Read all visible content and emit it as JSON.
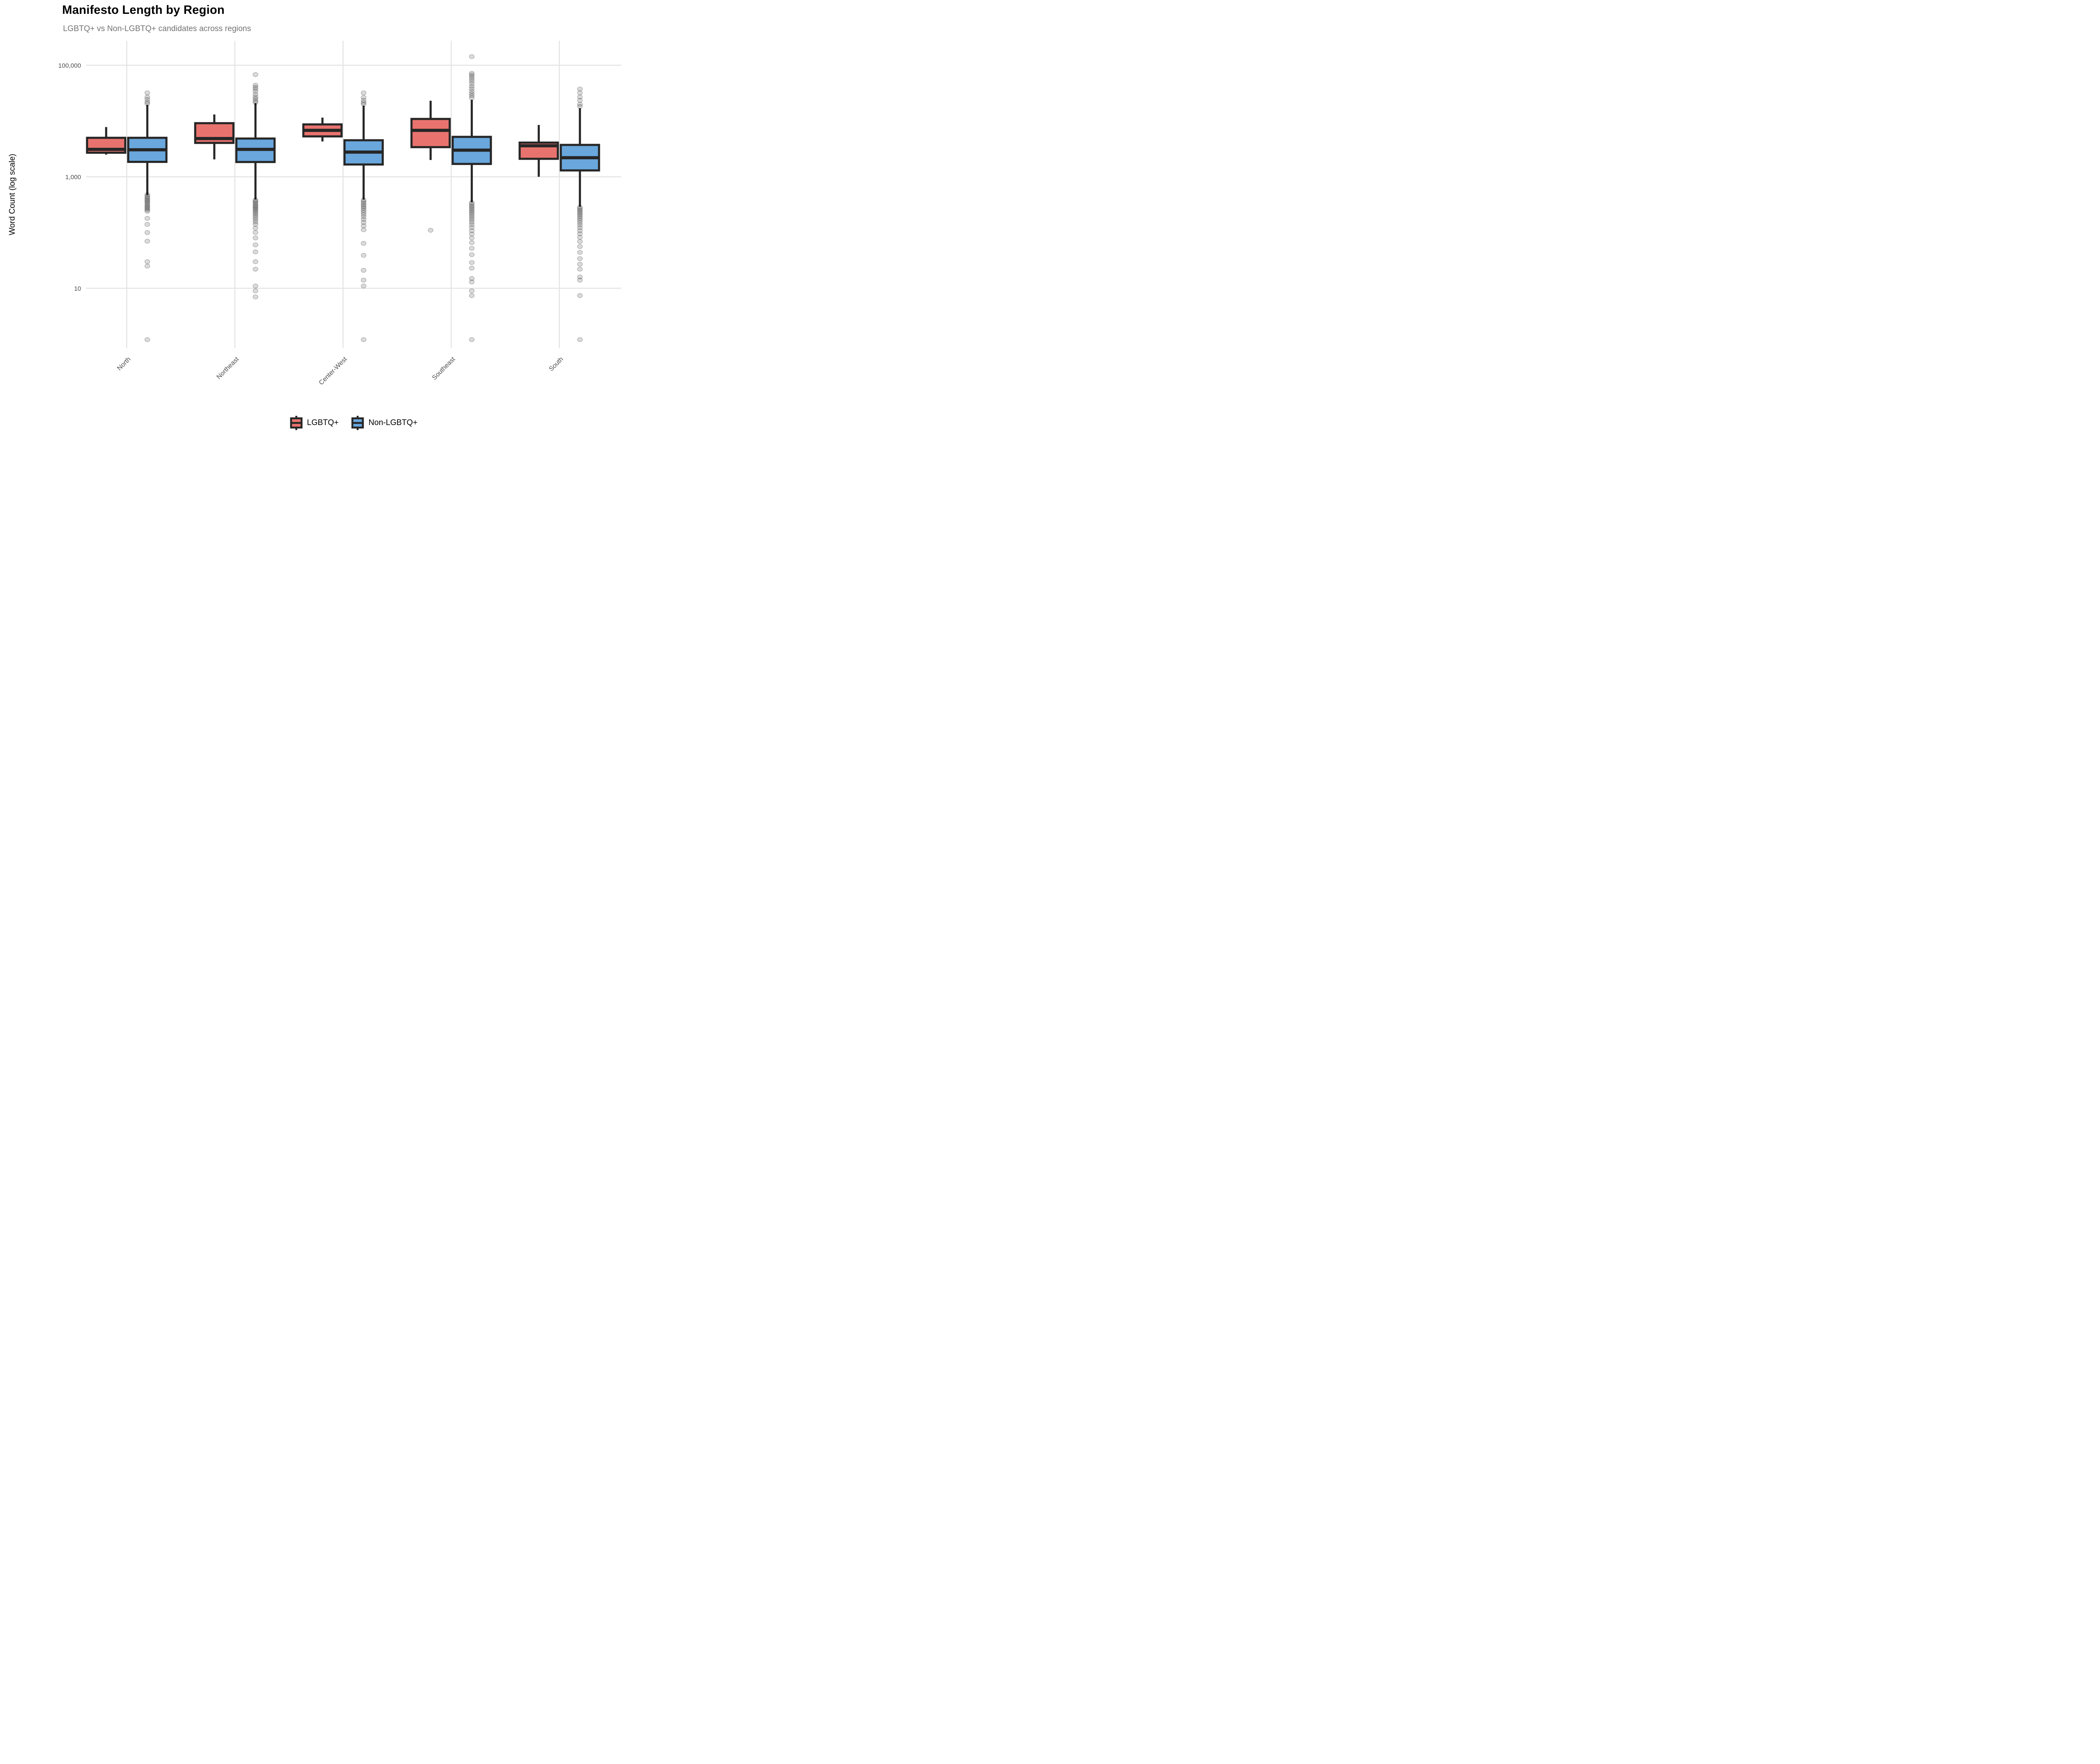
{
  "chart_data": {
    "type": "boxplot",
    "title": "Manifesto Length by Region",
    "subtitle": "LGBTQ+ vs Non-LGBTQ+ candidates across regions",
    "ylabel": "Word Count (log scale)",
    "y_scale": "log10",
    "ylim": [
      1,
      300000
    ],
    "grid": "major-only",
    "legend_position": "bottom",
    "y_ticks": [
      {
        "value": 100000,
        "label": "100,000"
      },
      {
        "value": 1000,
        "label": "1,000"
      },
      {
        "value": 10,
        "label": "10"
      }
    ],
    "categories": [
      "North",
      "Northeast",
      "Center-West",
      "Southeast",
      "South"
    ],
    "colors": {
      "box_outline": "#262626",
      "gridline": "#E4E4E4",
      "tick_text": "#4D4D4D",
      "subtitle_text": "#737373",
      "outlier": "#000000"
    },
    "series": [
      {
        "name": "LGBTQ+",
        "color": "#E8736E",
        "boxes": [
          {
            "region": "North",
            "min": 2500,
            "q1": 2700,
            "median": 3100,
            "q3": 5000,
            "max": 7800,
            "outliers": []
          },
          {
            "region": "Northeast",
            "min": 2050,
            "q1": 4050,
            "median": 4850,
            "q3": 9150,
            "max": 13100,
            "outliers": []
          },
          {
            "region": "Center-West",
            "min": 4300,
            "q1": 5300,
            "median": 6800,
            "q3": 8700,
            "max": 11500,
            "outliers": []
          },
          {
            "region": "Southeast",
            "min": 2000,
            "q1": 3400,
            "median": 6800,
            "q3": 10900,
            "max": 23100,
            "outliers": [
              110
            ]
          },
          {
            "region": "South",
            "min": 1000,
            "q1": 2100,
            "median": 3600,
            "q3": 4100,
            "max": 8500,
            "outliers": []
          }
        ]
      },
      {
        "name": "Non-LGBTQ+",
        "color": "#69A7DC",
        "boxes": [
          {
            "region": "North",
            "min": 470,
            "q1": 1850,
            "median": 3050,
            "q3": 5000,
            "max": 19500,
            "outliers": [
              20500,
              22000,
              24500,
              27000,
              32000,
              480,
              450,
              425,
              400,
              380,
              360,
              340,
              320,
              300,
              285,
              270,
              255,
              240,
              180,
              140,
              100,
              70,
              30,
              25,
              1.2
            ]
          },
          {
            "region": "Northeast",
            "min": 390,
            "q1": 1840,
            "median": 3100,
            "q3": 4850,
            "max": 20900,
            "outliers": [
              21500,
              23000,
              25000,
              27000,
              30000,
              34000,
              37500,
              40500,
              44000,
              68000,
              385,
              365,
              345,
              325,
              305,
              290,
              275,
              260,
              245,
              230,
              215,
              200,
              185,
              170,
              155,
              140,
              120,
              100,
              80,
              60,
              45,
              30,
              22,
              11,
              9,
              7
            ]
          },
          {
            "region": "Center-West",
            "min": 390,
            "q1": 1660,
            "median": 2770,
            "q3": 4520,
            "max": 18900,
            "outliers": [
              20000,
              21500,
              23500,
              26500,
              32000,
              385,
              360,
              335,
              312,
              292,
              272,
              252,
              232,
              212,
              192,
              172,
              152,
              132,
              112,
              64,
              39,
              21,
              14,
              11,
              1.2
            ]
          },
          {
            "region": "Southeast",
            "min": 350,
            "q1": 1700,
            "median": 3000,
            "q3": 5200,
            "max": 24000,
            "outliers": [
              26000,
              28500,
              31000,
              34000,
              38000,
              42000,
              47000,
              52000,
              57000,
              62000,
              67000,
              72000,
              143000,
              345,
              322,
              300,
              282,
              264,
              246,
              230,
              214,
              198,
              183,
              168,
              153,
              138,
              123,
              108,
              94,
              80,
              66,
              52,
              40,
              29,
              23,
              15,
              13,
              9,
              7.4,
              1.2
            ]
          },
          {
            "region": "South",
            "min": 290,
            "q1": 1300,
            "median": 2200,
            "q3": 3730,
            "max": 17000,
            "outliers": [
              18300,
              20000,
              23500,
              27000,
              32000,
              37500,
              285,
              268,
              252,
              236,
              221,
              206,
              192,
              178,
              164,
              150,
              136,
              122,
              108,
              95,
              82,
              69,
              56,
              44,
              34,
              27,
              22,
              16,
              14,
              7.4,
              1.2
            ]
          }
        ]
      }
    ]
  }
}
